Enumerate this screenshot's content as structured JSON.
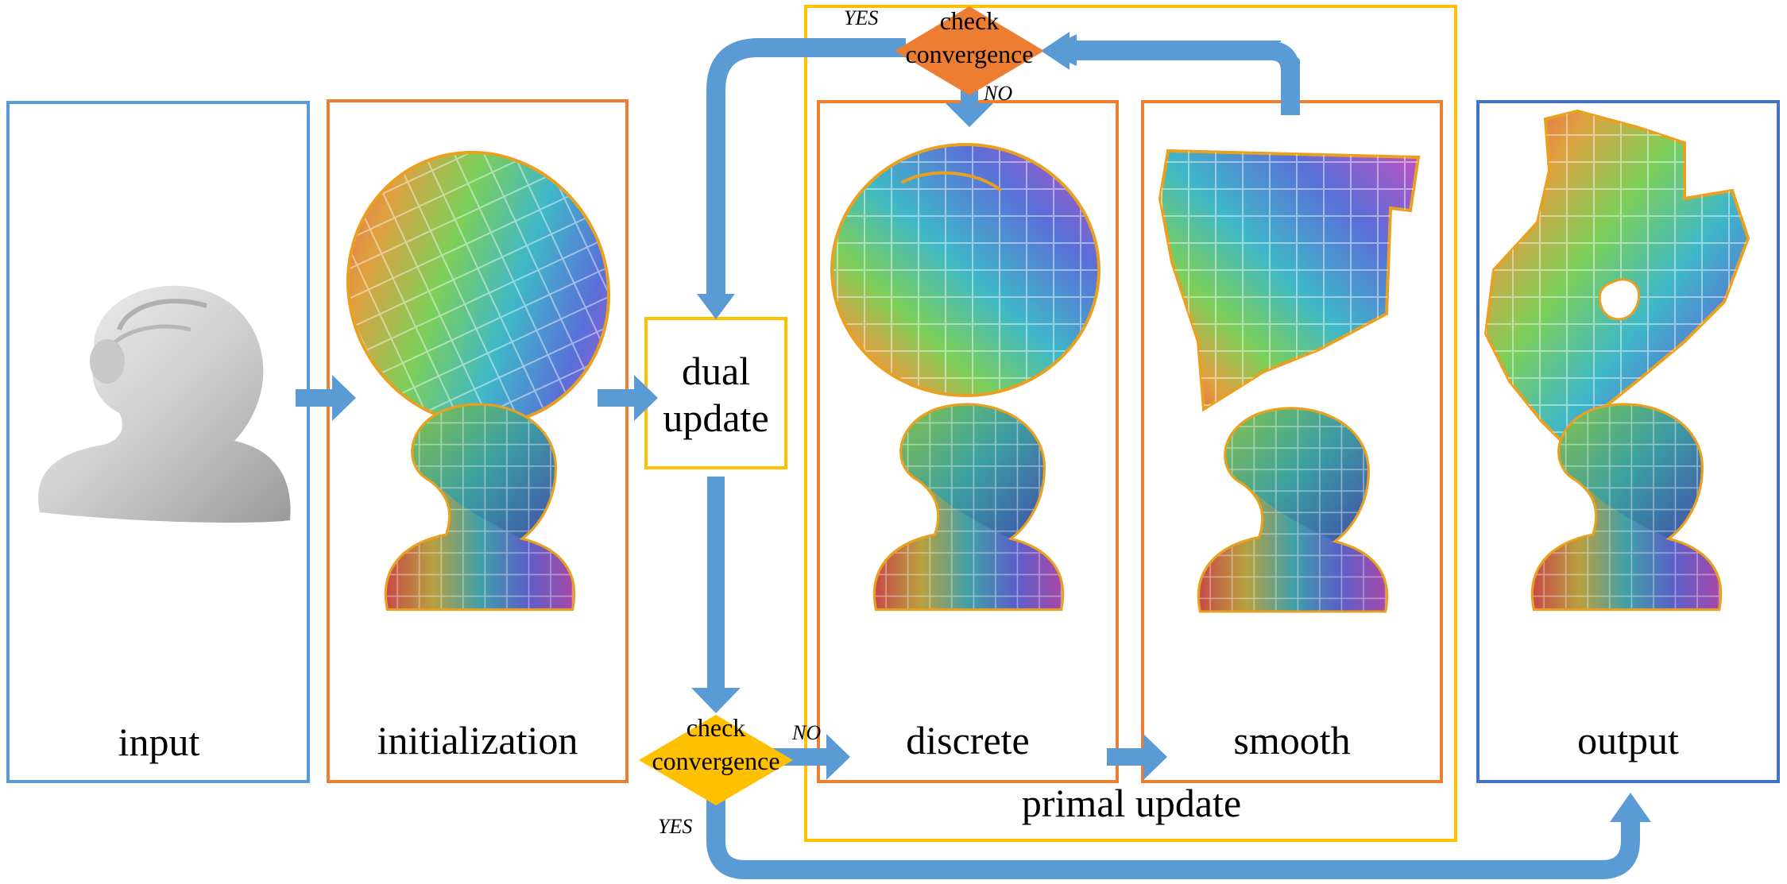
{
  "labels": {
    "input": "input",
    "initialization": "initialization",
    "dual_update_line1": "dual",
    "dual_update_line2": "update",
    "discrete": "discrete",
    "smooth": "smooth",
    "output": "output",
    "primal_update": "primal update",
    "check_top_line1": "check",
    "check_top_line2": "convergence",
    "check_bottom_line1": "check",
    "check_bottom_line2": "convergence",
    "yes_top": "YES",
    "no_top": "NO",
    "no_bottom": "NO",
    "yes_bottom": "YES"
  },
  "colors": {
    "input_border": "#5b9bd5",
    "stage_border": "#ed7d31",
    "primal_border": "#ffc000",
    "output_border": "#4472c4",
    "arrow": "#5b9bd5",
    "decision_top": "#ed7d31",
    "decision_bottom": "#ffc000"
  },
  "icons": [
    "bust-statue-image",
    "parametrization-patch-image",
    "textured-bust-image"
  ]
}
